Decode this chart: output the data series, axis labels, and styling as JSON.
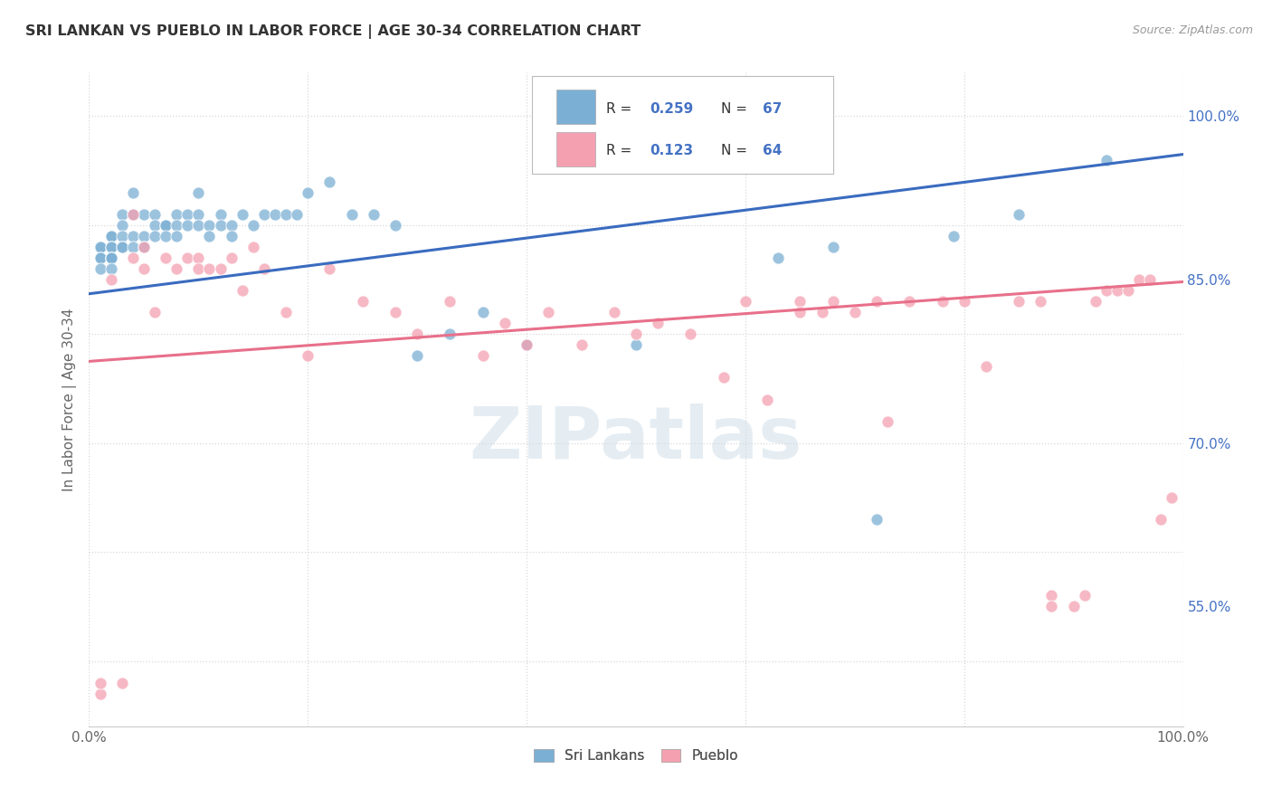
{
  "title": "SRI LANKAN VS PUEBLO IN LABOR FORCE | AGE 30-34 CORRELATION CHART",
  "source": "Source: ZipAtlas.com",
  "ylabel": "In Labor Force | Age 30-34",
  "xlim": [
    0.0,
    1.0
  ],
  "ylim": [
    0.44,
    1.04
  ],
  "x_ticks": [
    0.0,
    0.2,
    0.4,
    0.6,
    0.8,
    1.0
  ],
  "x_tick_labels": [
    "0.0%",
    "",
    "",
    "",
    "",
    "100.0%"
  ],
  "y_ticks_right": [
    1.0,
    0.85,
    0.7,
    0.55
  ],
  "y_tick_labels_right": [
    "100.0%",
    "85.0%",
    "70.0%",
    "55.0%"
  ],
  "sri_R": 0.259,
  "sri_N": 67,
  "pueblo_R": 0.123,
  "pueblo_N": 64,
  "sri_color": "#7bafd4",
  "pueblo_color": "#f4a0b0",
  "sri_line_color": "#3a6bbf",
  "pueblo_line_color": "#e8708a",
  "legend_label_sri": "Sri Lankans",
  "legend_label_pueblo": "Pueblo",
  "watermark": "ZIPatlas",
  "background_color": "#ffffff",
  "grid_color": "#d8d8d8",
  "title_color": "#333333",
  "sri_scatter_x": [
    0.01,
    0.01,
    0.01,
    0.01,
    0.01,
    0.02,
    0.02,
    0.02,
    0.02,
    0.02,
    0.02,
    0.02,
    0.02,
    0.03,
    0.03,
    0.03,
    0.03,
    0.03,
    0.04,
    0.04,
    0.04,
    0.04,
    0.05,
    0.05,
    0.05,
    0.06,
    0.06,
    0.06,
    0.07,
    0.07,
    0.07,
    0.08,
    0.08,
    0.08,
    0.09,
    0.09,
    0.1,
    0.1,
    0.1,
    0.11,
    0.11,
    0.12,
    0.12,
    0.13,
    0.13,
    0.14,
    0.15,
    0.16,
    0.17,
    0.18,
    0.19,
    0.2,
    0.22,
    0.24,
    0.26,
    0.28,
    0.3,
    0.33,
    0.36,
    0.4,
    0.5,
    0.63,
    0.68,
    0.72,
    0.79,
    0.85,
    0.93
  ],
  "sri_scatter_y": [
    0.88,
    0.88,
    0.87,
    0.87,
    0.86,
    0.89,
    0.89,
    0.88,
    0.88,
    0.87,
    0.87,
    0.87,
    0.86,
    0.91,
    0.9,
    0.89,
    0.88,
    0.88,
    0.93,
    0.91,
    0.89,
    0.88,
    0.91,
    0.89,
    0.88,
    0.91,
    0.9,
    0.89,
    0.9,
    0.9,
    0.89,
    0.91,
    0.9,
    0.89,
    0.91,
    0.9,
    0.93,
    0.91,
    0.9,
    0.9,
    0.89,
    0.91,
    0.9,
    0.9,
    0.89,
    0.91,
    0.9,
    0.91,
    0.91,
    0.91,
    0.91,
    0.93,
    0.94,
    0.91,
    0.91,
    0.9,
    0.78,
    0.8,
    0.82,
    0.79,
    0.79,
    0.87,
    0.88,
    0.63,
    0.89,
    0.91,
    0.96
  ],
  "pueblo_scatter_x": [
    0.01,
    0.01,
    0.02,
    0.03,
    0.04,
    0.04,
    0.05,
    0.05,
    0.06,
    0.07,
    0.08,
    0.09,
    0.1,
    0.1,
    0.11,
    0.12,
    0.13,
    0.14,
    0.15,
    0.16,
    0.18,
    0.2,
    0.22,
    0.25,
    0.28,
    0.3,
    0.33,
    0.36,
    0.38,
    0.4,
    0.42,
    0.45,
    0.48,
    0.5,
    0.52,
    0.55,
    0.58,
    0.6,
    0.62,
    0.65,
    0.65,
    0.67,
    0.68,
    0.7,
    0.72,
    0.73,
    0.75,
    0.78,
    0.8,
    0.82,
    0.85,
    0.87,
    0.88,
    0.88,
    0.9,
    0.91,
    0.92,
    0.93,
    0.94,
    0.95,
    0.96,
    0.97,
    0.98,
    0.99
  ],
  "pueblo_scatter_y": [
    0.47,
    0.48,
    0.85,
    0.48,
    0.87,
    0.91,
    0.88,
    0.86,
    0.82,
    0.87,
    0.86,
    0.87,
    0.87,
    0.86,
    0.86,
    0.86,
    0.87,
    0.84,
    0.88,
    0.86,
    0.82,
    0.78,
    0.86,
    0.83,
    0.82,
    0.8,
    0.83,
    0.78,
    0.81,
    0.79,
    0.82,
    0.79,
    0.82,
    0.8,
    0.81,
    0.8,
    0.76,
    0.83,
    0.74,
    0.83,
    0.82,
    0.82,
    0.83,
    0.82,
    0.83,
    0.72,
    0.83,
    0.83,
    0.83,
    0.77,
    0.83,
    0.83,
    0.56,
    0.55,
    0.55,
    0.56,
    0.83,
    0.84,
    0.84,
    0.84,
    0.85,
    0.85,
    0.63,
    0.65
  ],
  "sri_line_x": [
    0.0,
    1.0
  ],
  "sri_line_y": [
    0.837,
    0.965
  ],
  "pueblo_line_x": [
    0.0,
    1.0
  ],
  "pueblo_line_y": [
    0.775,
    0.848
  ]
}
